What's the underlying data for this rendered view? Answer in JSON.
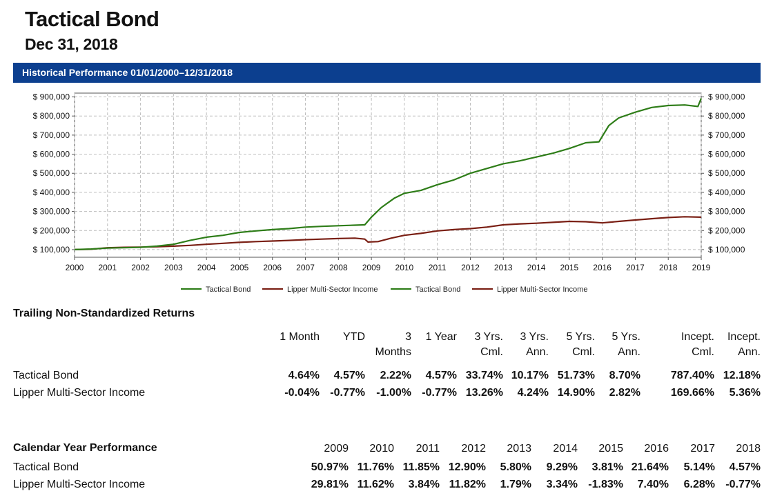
{
  "header": {
    "title": "Tactical Bond",
    "date": "Dec 31, 2018",
    "banner": "Historical Performance 01/01/2000–12/31/2018"
  },
  "chart_data": {
    "type": "line",
    "title": "Historical Performance 01/01/2000–12/31/2018",
    "x_ticks": [
      "2000",
      "2001",
      "2002",
      "2003",
      "2004",
      "2005",
      "2006",
      "2007",
      "2008",
      "2009",
      "2010",
      "2011",
      "2012",
      "2013",
      "2014",
      "2015",
      "2016",
      "2017",
      "2018",
      "2019"
    ],
    "y_ticks": [
      "$ 100,000",
      "$ 200,000",
      "$ 300,000",
      "$ 400,000",
      "$ 500,000",
      "$ 600,000",
      "$ 700,000",
      "$ 800,000",
      "$ 900,000"
    ],
    "ylim": [
      60000,
      920000
    ],
    "xlim": [
      2000,
      2019
    ],
    "grid": true,
    "legend_position": "bottom-center",
    "legend": [
      "Tactical Bond",
      "Lipper Multi-Sector Income",
      "Tactical Bond",
      "Lipper Multi-Sector Income"
    ],
    "series": [
      {
        "name": "Tactical Bond",
        "color": "#2e7d18",
        "x": [
          2000,
          2000.5,
          2001,
          2001.5,
          2002,
          2002.5,
          2003,
          2003.5,
          2004,
          2004.5,
          2005,
          2005.5,
          2006,
          2006.5,
          2007,
          2007.5,
          2008,
          2008.5,
          2008.8,
          2009,
          2009.3,
          2009.7,
          2010,
          2010.5,
          2011,
          2011.5,
          2012,
          2012.5,
          2013,
          2013.5,
          2014,
          2014.5,
          2015,
          2015.5,
          2015.9,
          2016.2,
          2016.5,
          2017,
          2017.5,
          2018,
          2018.5,
          2018.9,
          2019
        ],
        "values": [
          100000,
          103000,
          108000,
          110000,
          112000,
          118000,
          128000,
          148000,
          165000,
          175000,
          190000,
          198000,
          205000,
          210000,
          218000,
          222000,
          225000,
          228000,
          230000,
          270000,
          320000,
          370000,
          395000,
          410000,
          440000,
          465000,
          500000,
          525000,
          550000,
          565000,
          585000,
          605000,
          630000,
          660000,
          665000,
          750000,
          790000,
          820000,
          845000,
          855000,
          858000,
          850000,
          893000
        ]
      },
      {
        "name": "Lipper Multi-Sector Income",
        "color": "#7a1f14",
        "x": [
          2000,
          2000.5,
          2001,
          2001.5,
          2002,
          2002.5,
          2003,
          2003.5,
          2004,
          2004.5,
          2005,
          2005.5,
          2006,
          2006.5,
          2007,
          2007.5,
          2008,
          2008.5,
          2008.8,
          2008.9,
          2009.2,
          2009.6,
          2010,
          2010.5,
          2011,
          2011.5,
          2012,
          2012.5,
          2013,
          2013.5,
          2014,
          2014.5,
          2015,
          2015.5,
          2016,
          2016.5,
          2017,
          2017.5,
          2018,
          2018.5,
          2019
        ],
        "values": [
          100000,
          102000,
          110000,
          112000,
          113000,
          115000,
          118000,
          122000,
          128000,
          133000,
          138000,
          142000,
          145000,
          148000,
          152000,
          155000,
          158000,
          160000,
          155000,
          140000,
          142000,
          160000,
          175000,
          185000,
          198000,
          205000,
          210000,
          218000,
          230000,
          235000,
          238000,
          243000,
          248000,
          246000,
          240000,
          248000,
          255000,
          262000,
          268000,
          272000,
          270000
        ]
      }
    ]
  },
  "trailing": {
    "title": "Trailing Non-Standardized Returns",
    "headers": [
      [
        "1 Month",
        ""
      ],
      [
        "YTD",
        ""
      ],
      [
        "3",
        "Months"
      ],
      [
        "1 Year",
        ""
      ],
      [
        "3 Yrs.",
        "Cml."
      ],
      [
        "3 Yrs.",
        "Ann."
      ],
      [
        "5 Yrs.",
        "Cml."
      ],
      [
        "5 Yrs.",
        "Ann."
      ],
      [
        "Incept.",
        "Cml."
      ],
      [
        "Incept.",
        "Ann."
      ]
    ],
    "rows": [
      {
        "name": "Tactical Bond",
        "values": [
          "4.64%",
          "4.57%",
          "2.22%",
          "4.57%",
          "33.74%",
          "10.17%",
          "51.73%",
          "8.70%",
          "787.40%",
          "12.18%"
        ]
      },
      {
        "name": "Lipper Multi-Sector Income",
        "values": [
          "-0.04%",
          "-0.77%",
          "-1.00%",
          "-0.77%",
          "13.26%",
          "4.24%",
          "14.90%",
          "2.82%",
          "169.66%",
          "5.36%"
        ]
      }
    ]
  },
  "calendar": {
    "title": "Calendar Year Performance",
    "years": [
      "2009",
      "2010",
      "2011",
      "2012",
      "2013",
      "2014",
      "2015",
      "2016",
      "2017",
      "2018"
    ],
    "rows": [
      {
        "name": "Tactical Bond",
        "values": [
          "50.97%",
          "11.76%",
          "11.85%",
          "12.90%",
          "5.80%",
          "9.29%",
          "3.81%",
          "21.64%",
          "5.14%",
          "4.57%"
        ]
      },
      {
        "name": "Lipper Multi-Sector Income",
        "values": [
          "29.81%",
          "11.62%",
          "3.84%",
          "11.82%",
          "1.79%",
          "3.34%",
          "-1.83%",
          "7.40%",
          "6.28%",
          "-0.77%"
        ]
      }
    ]
  }
}
